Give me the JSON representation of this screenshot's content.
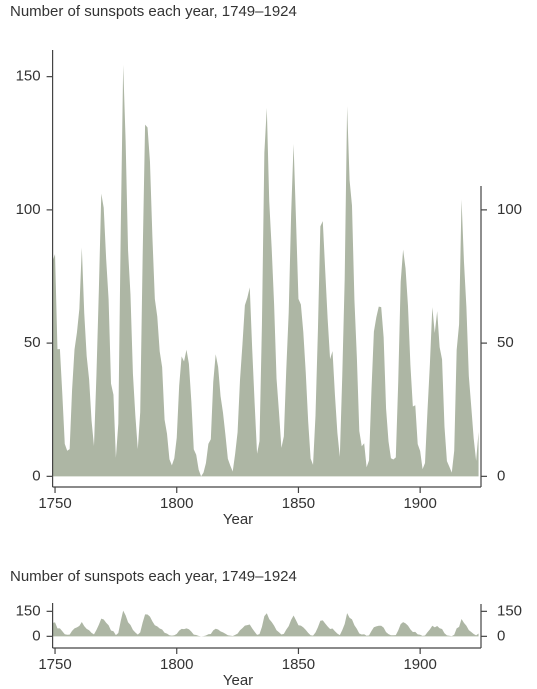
{
  "chart_data": [
    {
      "type": "area",
      "title": "Number of sunspots each year, 1749–1924",
      "xlabel": "Year",
      "color": "#adb6a4",
      "x": [
        1749,
        1750,
        1751,
        1752,
        1753,
        1754,
        1755,
        1756,
        1757,
        1758,
        1759,
        1760,
        1761,
        1762,
        1763,
        1764,
        1765,
        1766,
        1767,
        1768,
        1769,
        1770,
        1771,
        1772,
        1773,
        1774,
        1775,
        1776,
        1777,
        1778,
        1779,
        1780,
        1781,
        1782,
        1783,
        1784,
        1785,
        1786,
        1787,
        1788,
        1789,
        1790,
        1791,
        1792,
        1793,
        1794,
        1795,
        1796,
        1797,
        1798,
        1799,
        1800,
        1801,
        1802,
        1803,
        1804,
        1805,
        1806,
        1807,
        1808,
        1809,
        1810,
        1811,
        1812,
        1813,
        1814,
        1815,
        1816,
        1817,
        1818,
        1819,
        1820,
        1821,
        1822,
        1823,
        1824,
        1825,
        1826,
        1827,
        1828,
        1829,
        1830,
        1831,
        1832,
        1833,
        1834,
        1835,
        1836,
        1837,
        1838,
        1839,
        1840,
        1841,
        1842,
        1843,
        1844,
        1845,
        1846,
        1847,
        1848,
        1849,
        1850,
        1851,
        1852,
        1853,
        1854,
        1855,
        1856,
        1857,
        1858,
        1859,
        1860,
        1861,
        1862,
        1863,
        1864,
        1865,
        1866,
        1867,
        1868,
        1869,
        1870,
        1871,
        1872,
        1873,
        1874,
        1875,
        1876,
        1877,
        1878,
        1879,
        1880,
        1881,
        1882,
        1883,
        1884,
        1885,
        1886,
        1887,
        1888,
        1889,
        1890,
        1891,
        1892,
        1893,
        1894,
        1895,
        1896,
        1897,
        1898,
        1899,
        1900,
        1901,
        1902,
        1903,
        1904,
        1905,
        1906,
        1907,
        1908,
        1909,
        1910,
        1911,
        1912,
        1913,
        1914,
        1915,
        1916,
        1917,
        1918,
        1919,
        1920,
        1921,
        1922,
        1923,
        1924
      ],
      "values": [
        80.9,
        83.4,
        47.7,
        47.8,
        30.7,
        12.2,
        9.6,
        10.2,
        32.4,
        47.6,
        54.0,
        62.9,
        85.9,
        61.2,
        45.1,
        36.4,
        20.9,
        11.4,
        37.8,
        69.8,
        106.1,
        100.8,
        81.6,
        66.5,
        34.8,
        30.6,
        7.0,
        19.8,
        92.5,
        154.4,
        125.9,
        84.8,
        68.1,
        38.5,
        22.8,
        10.2,
        24.1,
        82.9,
        132.0,
        130.9,
        118.1,
        89.9,
        66.6,
        60.0,
        46.9,
        41.0,
        21.3,
        16.0,
        6.4,
        4.1,
        6.8,
        14.5,
        34.0,
        45.0,
        43.1,
        47.5,
        42.2,
        28.1,
        10.1,
        8.1,
        2.5,
        0.0,
        1.4,
        5.0,
        12.2,
        13.9,
        35.4,
        45.8,
        41.1,
        30.1,
        23.9,
        15.6,
        6.6,
        4.0,
        1.8,
        8.5,
        16.6,
        36.3,
        49.6,
        64.2,
        67.0,
        70.9,
        47.8,
        27.5,
        8.5,
        13.2,
        56.9,
        121.5,
        138.3,
        103.2,
        85.7,
        64.6,
        36.7,
        24.2,
        10.7,
        15.0,
        40.1,
        61.5,
        98.5,
        124.7,
        96.3,
        66.6,
        64.5,
        54.1,
        39.0,
        20.6,
        6.7,
        4.3,
        22.7,
        54.8,
        93.8,
        95.8,
        77.2,
        59.1,
        44.0,
        47.0,
        30.5,
        16.3,
        7.3,
        37.6,
        74.0,
        139.0,
        111.2,
        101.6,
        66.2,
        44.7,
        17.0,
        11.3,
        12.4,
        3.4,
        6.0,
        32.3,
        54.3,
        59.7,
        63.7,
        63.5,
        52.2,
        25.4,
        13.1,
        6.8,
        6.3,
        7.1,
        35.6,
        73.0,
        85.1,
        78.0,
        64.0,
        41.8,
        26.2,
        26.7,
        12.1,
        9.5,
        2.7,
        5.0,
        24.4,
        42.0,
        63.5,
        53.8,
        62.0,
        48.5,
        43.9,
        18.6,
        5.7,
        3.6,
        1.4,
        9.6,
        47.4,
        57.1,
        103.9,
        80.6,
        63.6,
        37.6,
        26.1,
        14.2,
        5.8,
        16.7
      ],
      "xlim": [
        1749,
        1925
      ],
      "xticks": [
        1750,
        1800,
        1850,
        1900
      ],
      "ylim": [
        -4,
        160
      ],
      "yticks": [
        0,
        50,
        100,
        150
      ],
      "y2lim": [
        -4,
        160
      ],
      "y2ticks": [
        0,
        50,
        100
      ]
    },
    {
      "type": "area",
      "title": "Number of sunspots each year, 1749–1924",
      "xlabel": "Year",
      "color": "#adb6a4",
      "x": [
        1749,
        1750,
        1751,
        1752,
        1753,
        1754,
        1755,
        1756,
        1757,
        1758,
        1759,
        1760,
        1761,
        1762,
        1763,
        1764,
        1765,
        1766,
        1767,
        1768,
        1769,
        1770,
        1771,
        1772,
        1773,
        1774,
        1775,
        1776,
        1777,
        1778,
        1779,
        1780,
        1781,
        1782,
        1783,
        1784,
        1785,
        1786,
        1787,
        1788,
        1789,
        1790,
        1791,
        1792,
        1793,
        1794,
        1795,
        1796,
        1797,
        1798,
        1799,
        1800,
        1801,
        1802,
        1803,
        1804,
        1805,
        1806,
        1807,
        1808,
        1809,
        1810,
        1811,
        1812,
        1813,
        1814,
        1815,
        1816,
        1817,
        1818,
        1819,
        1820,
        1821,
        1822,
        1823,
        1824,
        1825,
        1826,
        1827,
        1828,
        1829,
        1830,
        1831,
        1832,
        1833,
        1834,
        1835,
        1836,
        1837,
        1838,
        1839,
        1840,
        1841,
        1842,
        1843,
        1844,
        1845,
        1846,
        1847,
        1848,
        1849,
        1850,
        1851,
        1852,
        1853,
        1854,
        1855,
        1856,
        1857,
        1858,
        1859,
        1860,
        1861,
        1862,
        1863,
        1864,
        1865,
        1866,
        1867,
        1868,
        1869,
        1870,
        1871,
        1872,
        1873,
        1874,
        1875,
        1876,
        1877,
        1878,
        1879,
        1880,
        1881,
        1882,
        1883,
        1884,
        1885,
        1886,
        1887,
        1888,
        1889,
        1890,
        1891,
        1892,
        1893,
        1894,
        1895,
        1896,
        1897,
        1898,
        1899,
        1900,
        1901,
        1902,
        1903,
        1904,
        1905,
        1906,
        1907,
        1908,
        1909,
        1910,
        1911,
        1912,
        1913,
        1914,
        1915,
        1916,
        1917,
        1918,
        1919,
        1920,
        1921,
        1922,
        1923,
        1924
      ],
      "values": [
        80.9,
        83.4,
        47.7,
        47.8,
        30.7,
        12.2,
        9.6,
        10.2,
        32.4,
        47.6,
        54.0,
        62.9,
        85.9,
        61.2,
        45.1,
        36.4,
        20.9,
        11.4,
        37.8,
        69.8,
        106.1,
        100.8,
        81.6,
        66.5,
        34.8,
        30.6,
        7.0,
        19.8,
        92.5,
        154.4,
        125.9,
        84.8,
        68.1,
        38.5,
        22.8,
        10.2,
        24.1,
        82.9,
        132.0,
        130.9,
        118.1,
        89.9,
        66.6,
        60.0,
        46.9,
        41.0,
        21.3,
        16.0,
        6.4,
        4.1,
        6.8,
        14.5,
        34.0,
        45.0,
        43.1,
        47.5,
        42.2,
        28.1,
        10.1,
        8.1,
        2.5,
        0.0,
        1.4,
        5.0,
        12.2,
        13.9,
        35.4,
        45.8,
        41.1,
        30.1,
        23.9,
        15.6,
        6.6,
        4.0,
        1.8,
        8.5,
        16.6,
        36.3,
        49.6,
        64.2,
        67.0,
        70.9,
        47.8,
        27.5,
        8.5,
        13.2,
        56.9,
        121.5,
        138.3,
        103.2,
        85.7,
        64.6,
        36.7,
        24.2,
        10.7,
        15.0,
        40.1,
        61.5,
        98.5,
        124.7,
        96.3,
        66.6,
        64.5,
        54.1,
        39.0,
        20.6,
        6.7,
        4.3,
        22.7,
        54.8,
        93.8,
        95.8,
        77.2,
        59.1,
        44.0,
        47.0,
        30.5,
        16.3,
        7.3,
        37.6,
        74.0,
        139.0,
        111.2,
        101.6,
        66.2,
        44.7,
        17.0,
        11.3,
        12.4,
        3.4,
        6.0,
        32.3,
        54.3,
        59.7,
        63.7,
        63.5,
        52.2,
        25.4,
        13.1,
        6.8,
        6.3,
        7.1,
        35.6,
        73.0,
        85.1,
        78.0,
        64.0,
        41.8,
        26.2,
        26.7,
        12.1,
        9.5,
        2.7,
        5.0,
        24.4,
        42.0,
        63.5,
        53.8,
        62.0,
        48.5,
        43.9,
        18.6,
        5.7,
        3.6,
        1.4,
        9.6,
        47.4,
        57.1,
        103.9,
        80.6,
        63.6,
        37.6,
        26.1,
        14.2,
        5.8,
        16.7
      ],
      "xlim": [
        1749,
        1925
      ],
      "xticks": [
        1750,
        1800,
        1850,
        1900
      ],
      "ylim": [
        -70,
        200
      ],
      "yticks": [
        0,
        150
      ],
      "y2lim": [
        -70,
        200
      ],
      "y2ticks": [
        0,
        150
      ]
    }
  ]
}
